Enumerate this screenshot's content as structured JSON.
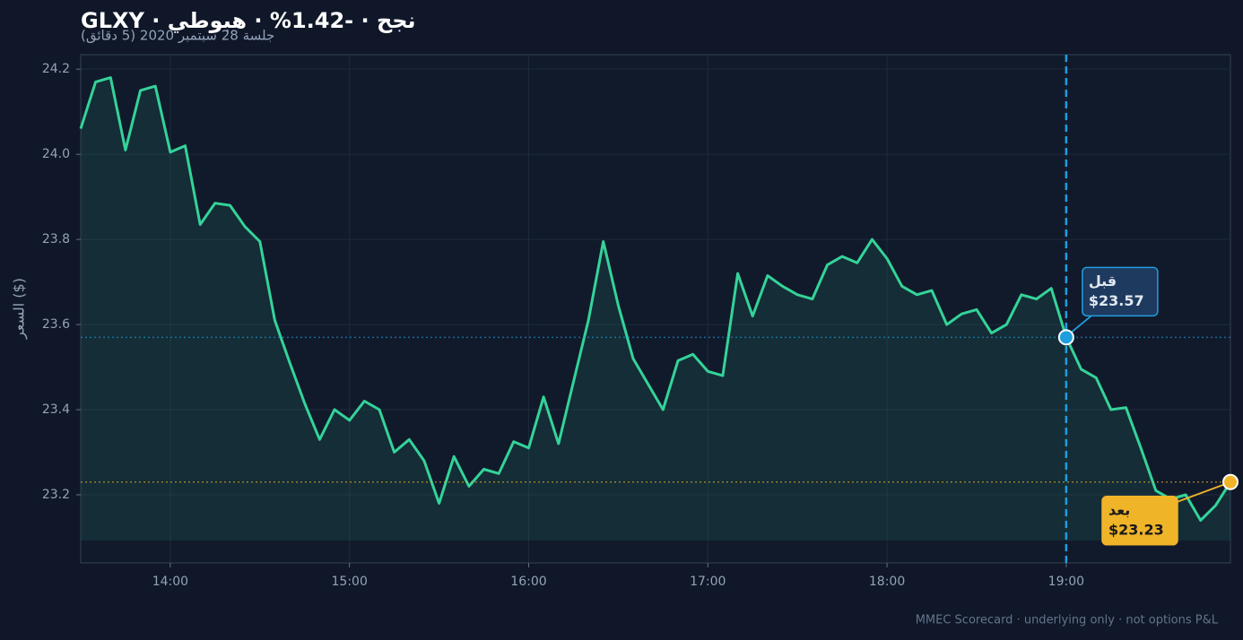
{
  "chart_data": {
    "type": "line",
    "title": "GLXY · نجح · -1.42% · هبوطي",
    "subtitle": "جلسة 28 سبتمبر 2020 (5 دقائق)",
    "y_label": "السعر ($)",
    "footer": "MMEC Scorecard · underlying only · not options P&L",
    "x": [
      "13:30",
      "13:35",
      "13:40",
      "13:45",
      "13:50",
      "13:55",
      "14:00",
      "14:05",
      "14:10",
      "14:15",
      "14:20",
      "14:25",
      "14:30",
      "14:35",
      "14:40",
      "14:45",
      "14:50",
      "14:55",
      "15:00",
      "15:05",
      "15:10",
      "15:15",
      "15:20",
      "15:25",
      "15:30",
      "15:35",
      "15:40",
      "15:45",
      "15:50",
      "15:55",
      "16:00",
      "16:05",
      "16:10",
      "16:15",
      "16:20",
      "16:25",
      "16:30",
      "16:35",
      "16:40",
      "16:45",
      "16:50",
      "16:55",
      "17:00",
      "17:05",
      "17:10",
      "17:15",
      "17:20",
      "17:25",
      "17:30",
      "17:35",
      "17:40",
      "17:45",
      "17:50",
      "17:55",
      "18:00",
      "18:05",
      "18:10",
      "18:15",
      "18:20",
      "18:25",
      "18:30",
      "18:35",
      "18:40",
      "18:45",
      "18:50",
      "18:55",
      "19:00",
      "19:05",
      "19:10",
      "19:15",
      "19:20",
      "19:25",
      "19:30",
      "19:35",
      "19:40",
      "19:45",
      "19:50",
      "19:55"
    ],
    "series": [
      {
        "color": "#34d399",
        "values": [
          24.06,
          24.17,
          24.18,
          24.01,
          24.15,
          24.16,
          24.005,
          24.02,
          23.835,
          23.885,
          23.88,
          23.83,
          23.795,
          23.61,
          23.51,
          23.415,
          23.33,
          23.4,
          23.375,
          23.42,
          23.4,
          23.3,
          23.33,
          23.28,
          23.18,
          23.29,
          23.22,
          23.26,
          23.25,
          23.325,
          23.31,
          23.43,
          23.32,
          23.465,
          23.61,
          23.795,
          23.645,
          23.52,
          23.46,
          23.4,
          23.515,
          23.53,
          23.49,
          23.48,
          23.72,
          23.62,
          23.715,
          23.69,
          23.67,
          23.66,
          23.74,
          23.76,
          23.745,
          23.8,
          23.755,
          23.69,
          23.67,
          23.68,
          23.6,
          23.625,
          23.635,
          23.58,
          23.6,
          23.67,
          23.66,
          23.685,
          23.57,
          23.495,
          23.475,
          23.4,
          23.405,
          23.31,
          23.21,
          23.19,
          23.2,
          23.14,
          23.175,
          23.23
        ]
      }
    ],
    "annotations": [
      {
        "name": "قبل",
        "x": "19:00",
        "value": 23.57,
        "value_label": "$23.57",
        "color": "#1f9ede"
      },
      {
        "name": "بعد",
        "x": "19:55",
        "value": 23.23,
        "value_label": "$23.23",
        "color": "#f0b429"
      }
    ],
    "xlim": [
      "13:30",
      "19:55"
    ],
    "xticks": [
      "14:00",
      "15:00",
      "16:00",
      "17:00",
      "18:00",
      "19:00"
    ],
    "ylim": [
      23.04,
      24.234
    ],
    "yticks": [
      23.2,
      23.4,
      23.6,
      23.8,
      {
        "value": 24,
        "label": "24.0"
      },
      24.2
    ],
    "grid": true
  }
}
